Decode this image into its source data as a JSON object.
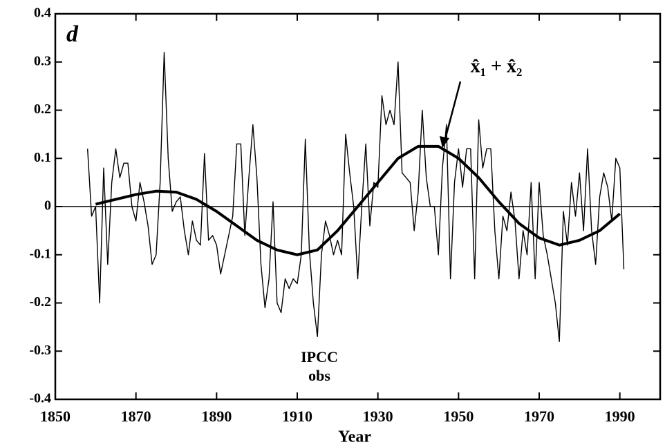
{
  "chart_data": {
    "type": "line",
    "panel_label": "d",
    "xlabel": "Year",
    "xlim": [
      1850,
      2000
    ],
    "xticks": [
      1850,
      1870,
      1890,
      1910,
      1930,
      1950,
      1970,
      1990
    ],
    "ylim": [
      -0.4,
      0.4
    ],
    "yticks": [
      -0.4,
      -0.3,
      -0.2,
      -0.1,
      0,
      0.1,
      0.2,
      0.3,
      0.4
    ],
    "series": [
      {
        "color": "#000000",
        "style": "thin",
        "x": [
          1858,
          1859,
          1860,
          1861,
          1862,
          1863,
          1864,
          1865,
          1866,
          1867,
          1868,
          1869,
          1870,
          1871,
          1872,
          1873,
          1874,
          1875,
          1876,
          1877,
          1878,
          1879,
          1880,
          1881,
          1882,
          1883,
          1884,
          1885,
          1886,
          1887,
          1888,
          1889,
          1890,
          1891,
          1892,
          1893,
          1894,
          1895,
          1896,
          1897,
          1898,
          1899,
          1900,
          1901,
          1902,
          1903,
          1904,
          1905,
          1906,
          1907,
          1908,
          1909,
          1910,
          1911,
          1912,
          1913,
          1914,
          1915,
          1916,
          1917,
          1918,
          1919,
          1920,
          1921,
          1922,
          1923,
          1924,
          1925,
          1926,
          1927,
          1928,
          1929,
          1930,
          1931,
          1932,
          1933,
          1934,
          1935,
          1936,
          1937,
          1938,
          1939,
          1940,
          1941,
          1942,
          1943,
          1944,
          1945,
          1946,
          1947,
          1948,
          1949,
          1950,
          1951,
          1952,
          1953,
          1954,
          1955,
          1956,
          1957,
          1958,
          1959,
          1960,
          1961,
          1962,
          1963,
          1964,
          1965,
          1966,
          1967,
          1968,
          1969,
          1970,
          1971,
          1972,
          1973,
          1974,
          1975,
          1976,
          1977,
          1978,
          1979,
          1980,
          1981,
          1982,
          1983,
          1984,
          1985,
          1986,
          1987,
          1988,
          1989,
          1990,
          1991
        ],
        "values": [
          0.12,
          -0.02,
          0.0,
          -0.2,
          0.08,
          -0.12,
          0.05,
          0.12,
          0.06,
          0.09,
          0.09,
          0.0,
          -0.03,
          0.05,
          0.01,
          -0.04,
          -0.12,
          -0.1,
          0.05,
          0.32,
          0.1,
          -0.01,
          0.01,
          0.02,
          -0.05,
          -0.1,
          -0.03,
          -0.07,
          -0.08,
          0.11,
          -0.07,
          -0.06,
          -0.08,
          -0.14,
          -0.1,
          -0.06,
          -0.02,
          0.13,
          0.13,
          -0.06,
          0.06,
          0.17,
          0.06,
          -0.12,
          -0.21,
          -0.15,
          0.01,
          -0.2,
          -0.22,
          -0.15,
          -0.17,
          -0.15,
          -0.16,
          -0.1,
          0.14,
          -0.09,
          -0.2,
          -0.27,
          -0.1,
          -0.03,
          -0.06,
          -0.1,
          -0.07,
          -0.1,
          0.15,
          0.07,
          0.0,
          -0.15,
          0.0,
          0.13,
          -0.04,
          0.05,
          0.04,
          0.23,
          0.17,
          0.2,
          0.17,
          0.3,
          0.07,
          0.06,
          0.05,
          -0.05,
          0.03,
          0.2,
          0.06,
          0.0,
          0.0,
          -0.1,
          0.08,
          0.17,
          -0.15,
          0.05,
          0.12,
          0.04,
          0.12,
          0.12,
          -0.15,
          0.18,
          0.08,
          0.12,
          0.12,
          -0.05,
          -0.15,
          -0.02,
          -0.05,
          0.03,
          -0.03,
          -0.15,
          -0.05,
          -0.1,
          0.05,
          -0.15,
          0.05,
          -0.06,
          -0.1,
          -0.15,
          -0.2,
          -0.28,
          -0.01,
          -0.08,
          0.05,
          -0.02,
          0.07,
          -0.05,
          0.12,
          -0.05,
          -0.12,
          0.02,
          0.07,
          0.04,
          -0.03,
          0.1,
          0.08,
          -0.13
        ]
      },
      {
        "color": "#000000",
        "style": "thick",
        "x": [
          1860,
          1865,
          1870,
          1875,
          1880,
          1885,
          1890,
          1895,
          1900,
          1905,
          1910,
          1915,
          1920,
          1925,
          1930,
          1935,
          1940,
          1945,
          1950,
          1955,
          1960,
          1965,
          1970,
          1975,
          1980,
          1985,
          1990
        ],
        "values": [
          0.005,
          0.015,
          0.025,
          0.032,
          0.03,
          0.015,
          -0.01,
          -0.04,
          -0.07,
          -0.09,
          -0.1,
          -0.09,
          -0.05,
          0.0,
          0.05,
          0.1,
          0.125,
          0.125,
          0.1,
          0.06,
          0.01,
          -0.035,
          -0.065,
          -0.08,
          -0.07,
          -0.05,
          -0.015
        ]
      }
    ],
    "annotations": [
      "IPCC",
      "obs",
      "x̂₁ + x̂₂"
    ]
  }
}
